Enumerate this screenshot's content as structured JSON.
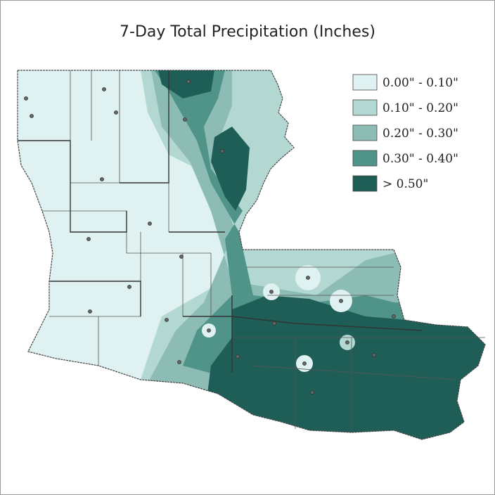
{
  "title": "7-Day Total Precipitation (Inches)",
  "legend": [
    {
      "label": "0.00\" - 0.10\"",
      "color": "#dff1f0"
    },
    {
      "label": "0.10\" - 0.20\"",
      "color": "#b3d8d2"
    },
    {
      "label": "0.20\" - 0.30\"",
      "color": "#8cbcb4"
    },
    {
      "label": "0.30\" - 0.40\"",
      "color": "#4f9389"
    },
    {
      "label": "> 0.50\"",
      "color": "#1f5e57"
    }
  ]
}
